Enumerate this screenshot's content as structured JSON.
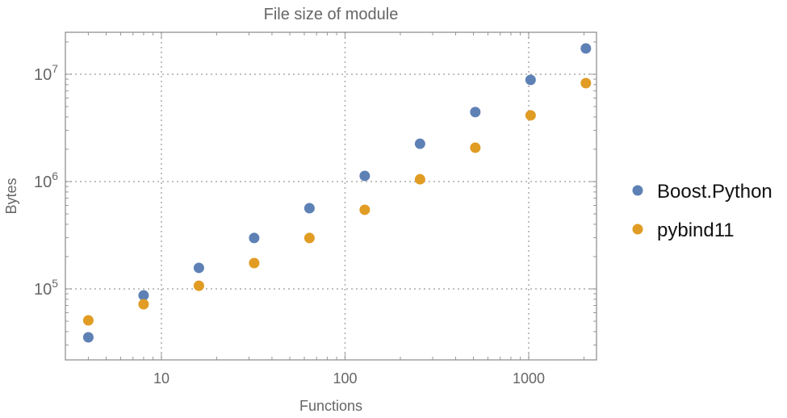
{
  "chart_data": {
    "type": "scatter",
    "title": "File size of module",
    "xlabel": "Functions",
    "ylabel": "Bytes",
    "xscale": "log",
    "yscale": "log",
    "xlim": [
      3,
      2340
    ],
    "ylim": [
      21800,
      24600000
    ],
    "grid": true,
    "legend_position": "right",
    "x_ticks": [
      {
        "value": 10,
        "label": "10"
      },
      {
        "value": 100,
        "label": "100"
      },
      {
        "value": 1000,
        "label": "1000"
      }
    ],
    "y_ticks": [
      {
        "value": 100000,
        "base": "10",
        "exp": "5"
      },
      {
        "value": 1000000,
        "base": "10",
        "exp": "6"
      },
      {
        "value": 10000000,
        "base": "10",
        "exp": "7"
      }
    ],
    "x": [
      4,
      8,
      16,
      32,
      64,
      128,
      256,
      512,
      1024,
      2048
    ],
    "series": [
      {
        "name": "Boost.Python",
        "color": "#5E81B5",
        "values": [
          35400,
          87000,
          157000,
          298000,
          565000,
          1130000,
          2250000,
          4440000,
          8860000,
          17400000
        ]
      },
      {
        "name": "pybind11",
        "color": "#E19C24",
        "values": [
          50900,
          72000,
          107000,
          174000,
          298000,
          546000,
          1050000,
          2070000,
          4140000,
          8270000
        ]
      }
    ]
  }
}
